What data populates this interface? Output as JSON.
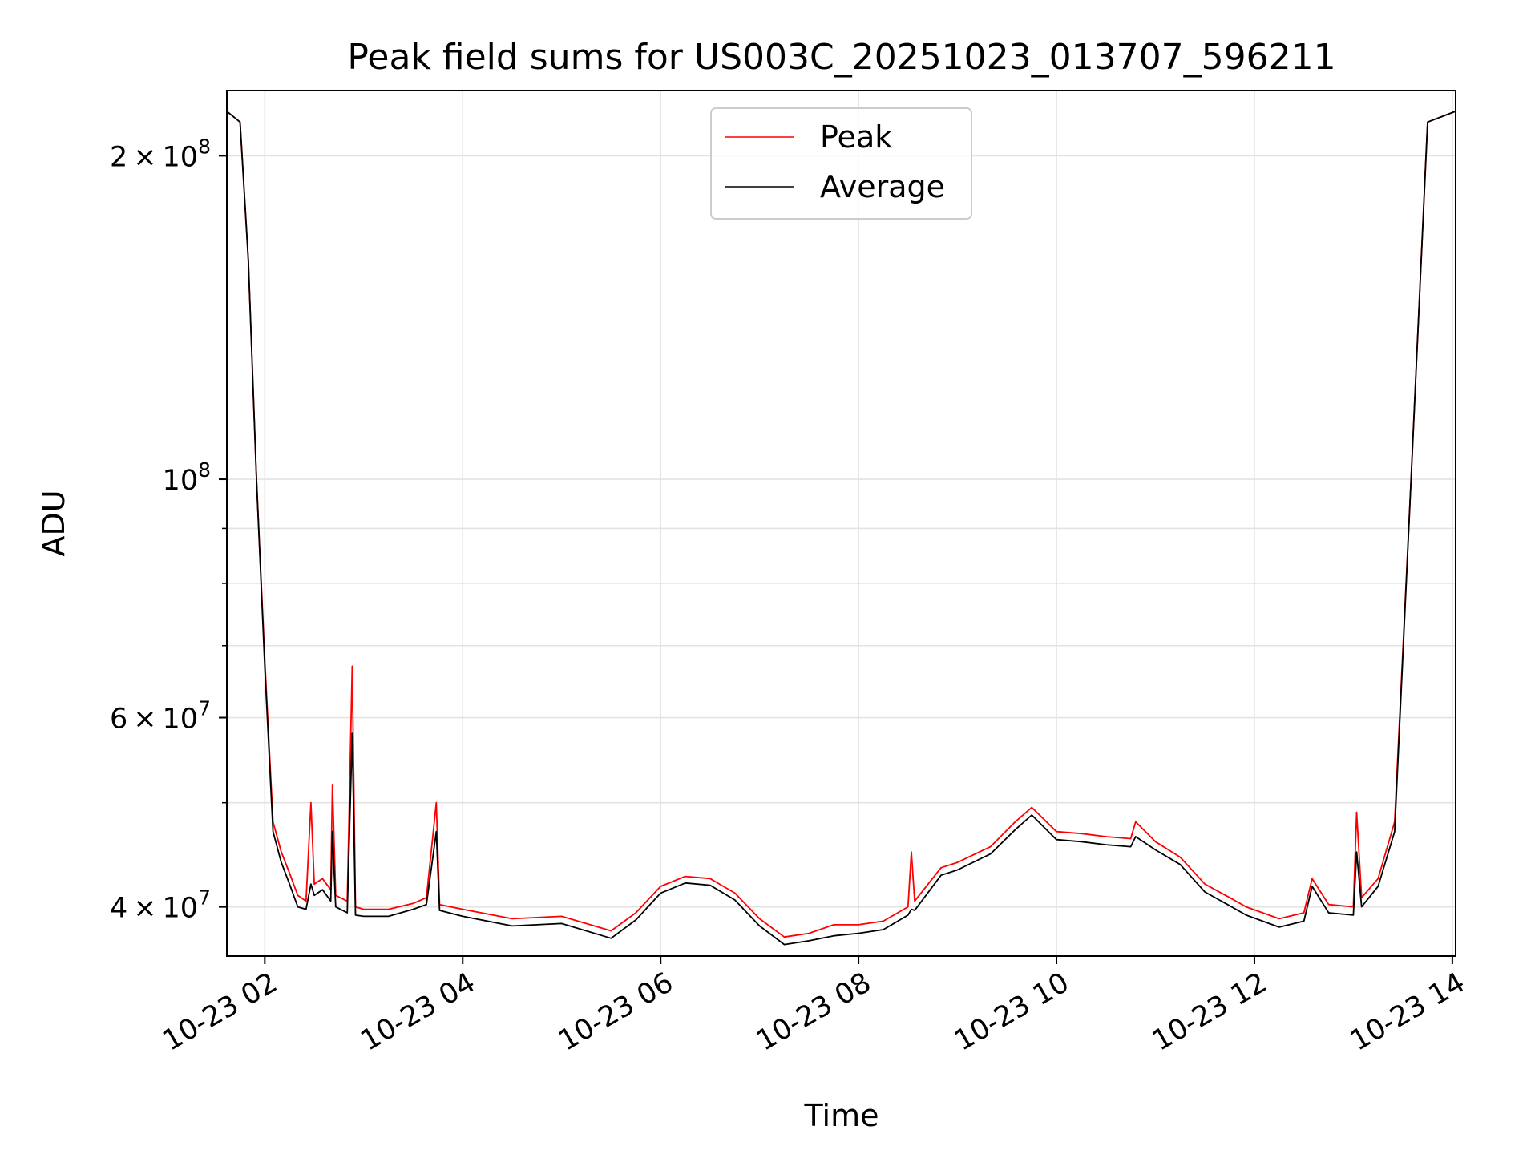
{
  "chart_data": {
    "type": "line",
    "title": "Peak field sums for US003C_20251023_013707_596211",
    "xlabel": "Time",
    "ylabel": "ADU",
    "yscale": "log",
    "grid": true,
    "legend_position": "upper-center",
    "xlim": [
      "2025-10-23 01:37",
      "2025-10-23 14:02"
    ],
    "ylim": [
      36000000,
      230000000
    ],
    "x_ticks": [
      {
        "value": "2025-10-23 02:00",
        "label": "10-23 02"
      },
      {
        "value": "2025-10-23 04:00",
        "label": "10-23 04"
      },
      {
        "value": "2025-10-23 06:00",
        "label": "10-23 06"
      },
      {
        "value": "2025-10-23 08:00",
        "label": "10-23 08"
      },
      {
        "value": "2025-10-23 10:00",
        "label": "10-23 10"
      },
      {
        "value": "2025-10-23 12:00",
        "label": "10-23 12"
      },
      {
        "value": "2025-10-23 14:00",
        "label": "10-23 14"
      }
    ],
    "y_major_ticks": [
      {
        "value": 40000000,
        "mantissa": "4",
        "exponent": "7"
      },
      {
        "value": 60000000,
        "mantissa": "6",
        "exponent": "7"
      },
      {
        "value": 100000000,
        "mantissa": "",
        "exponent": "8"
      },
      {
        "value": 200000000,
        "mantissa": "2",
        "exponent": "8"
      }
    ],
    "y_minor_gridlines": [
      50000000,
      70000000,
      80000000,
      90000000
    ],
    "series": [
      {
        "name": "Peak",
        "color": "#ff0000",
        "points": [
          [
            "2025-10-23 01:37",
            220000000
          ],
          [
            "2025-10-23 01:45",
            215000000
          ],
          [
            "2025-10-23 01:50",
            160000000
          ],
          [
            "2025-10-23 01:55",
            100000000
          ],
          [
            "2025-10-23 02:00",
            68000000
          ],
          [
            "2025-10-23 02:05",
            48000000
          ],
          [
            "2025-10-23 02:10",
            45000000
          ],
          [
            "2025-10-23 02:15",
            43000000
          ],
          [
            "2025-10-23 02:20",
            41000000
          ],
          [
            "2025-10-23 02:25",
            40500000
          ],
          [
            "2025-10-23 02:28",
            50000000
          ],
          [
            "2025-10-23 02:30",
            42000000
          ],
          [
            "2025-10-23 02:35",
            42500000
          ],
          [
            "2025-10-23 02:40",
            41500000
          ],
          [
            "2025-10-23 02:41",
            52000000
          ],
          [
            "2025-10-23 02:43",
            41000000
          ],
          [
            "2025-10-23 02:50",
            40500000
          ],
          [
            "2025-10-23 02:53",
            67000000
          ],
          [
            "2025-10-23 02:55",
            40000000
          ],
          [
            "2025-10-23 03:00",
            39800000
          ],
          [
            "2025-10-23 03:15",
            39800000
          ],
          [
            "2025-10-23 03:30",
            40300000
          ],
          [
            "2025-10-23 03:38",
            40800000
          ],
          [
            "2025-10-23 03:44",
            50000000
          ],
          [
            "2025-10-23 03:46",
            40200000
          ],
          [
            "2025-10-23 04:00",
            39800000
          ],
          [
            "2025-10-23 04:30",
            39000000
          ],
          [
            "2025-10-23 05:00",
            39200000
          ],
          [
            "2025-10-23 05:30",
            38000000
          ],
          [
            "2025-10-23 05:45",
            39500000
          ],
          [
            "2025-10-23 06:00",
            41800000
          ],
          [
            "2025-10-23 06:15",
            42700000
          ],
          [
            "2025-10-23 06:30",
            42500000
          ],
          [
            "2025-10-23 06:45",
            41200000
          ],
          [
            "2025-10-23 07:00",
            39000000
          ],
          [
            "2025-10-23 07:15",
            37500000
          ],
          [
            "2025-10-23 07:30",
            37800000
          ],
          [
            "2025-10-23 07:45",
            38500000
          ],
          [
            "2025-10-23 08:00",
            38500000
          ],
          [
            "2025-10-23 08:15",
            38800000
          ],
          [
            "2025-10-23 08:30",
            40000000
          ],
          [
            "2025-10-23 08:32",
            45000000
          ],
          [
            "2025-10-23 08:34",
            40500000
          ],
          [
            "2025-10-23 08:50",
            43500000
          ],
          [
            "2025-10-23 09:00",
            44000000
          ],
          [
            "2025-10-23 09:20",
            45500000
          ],
          [
            "2025-10-23 09:35",
            48000000
          ],
          [
            "2025-10-23 09:45",
            49500000
          ],
          [
            "2025-10-23 10:00",
            47000000
          ],
          [
            "2025-10-23 10:15",
            46800000
          ],
          [
            "2025-10-23 10:30",
            46500000
          ],
          [
            "2025-10-23 10:45",
            46300000
          ],
          [
            "2025-10-23 10:48",
            48000000
          ],
          [
            "2025-10-23 11:00",
            46000000
          ],
          [
            "2025-10-23 11:15",
            44500000
          ],
          [
            "2025-10-23 11:30",
            42000000
          ],
          [
            "2025-10-23 11:45",
            40800000
          ],
          [
            "2025-10-23 11:55",
            40000000
          ],
          [
            "2025-10-23 12:15",
            39000000
          ],
          [
            "2025-10-23 12:30",
            39500000
          ],
          [
            "2025-10-23 12:35",
            42500000
          ],
          [
            "2025-10-23 12:45",
            40200000
          ],
          [
            "2025-10-23 13:00",
            40000000
          ],
          [
            "2025-10-23 13:02",
            49000000
          ],
          [
            "2025-10-23 13:05",
            40800000
          ],
          [
            "2025-10-23 13:15",
            42500000
          ],
          [
            "2025-10-23 13:25",
            48000000
          ],
          [
            "2025-10-23 13:35",
            100000000
          ],
          [
            "2025-10-23 13:45",
            215000000
          ],
          [
            "2025-10-23 14:02",
            220000000
          ]
        ]
      },
      {
        "name": "Average",
        "color": "#000000",
        "points": [
          [
            "2025-10-23 01:37",
            220000000
          ],
          [
            "2025-10-23 01:45",
            215000000
          ],
          [
            "2025-10-23 01:50",
            160000000
          ],
          [
            "2025-10-23 01:55",
            100000000
          ],
          [
            "2025-10-23 02:00",
            67000000
          ],
          [
            "2025-10-23 02:05",
            47000000
          ],
          [
            "2025-10-23 02:10",
            44000000
          ],
          [
            "2025-10-23 02:15",
            42000000
          ],
          [
            "2025-10-23 02:20",
            40000000
          ],
          [
            "2025-10-23 02:25",
            39800000
          ],
          [
            "2025-10-23 02:28",
            42000000
          ],
          [
            "2025-10-23 02:30",
            41000000
          ],
          [
            "2025-10-23 02:35",
            41500000
          ],
          [
            "2025-10-23 02:40",
            40500000
          ],
          [
            "2025-10-23 02:41",
            47000000
          ],
          [
            "2025-10-23 02:43",
            40000000
          ],
          [
            "2025-10-23 02:50",
            39500000
          ],
          [
            "2025-10-23 02:53",
            58000000
          ],
          [
            "2025-10-23 02:55",
            39300000
          ],
          [
            "2025-10-23 03:00",
            39200000
          ],
          [
            "2025-10-23 03:15",
            39200000
          ],
          [
            "2025-10-23 03:30",
            39800000
          ],
          [
            "2025-10-23 03:38",
            40200000
          ],
          [
            "2025-10-23 03:44",
            47000000
          ],
          [
            "2025-10-23 03:46",
            39700000
          ],
          [
            "2025-10-23 04:00",
            39200000
          ],
          [
            "2025-10-23 04:30",
            38400000
          ],
          [
            "2025-10-23 05:00",
            38600000
          ],
          [
            "2025-10-23 05:30",
            37400000
          ],
          [
            "2025-10-23 05:45",
            38900000
          ],
          [
            "2025-10-23 06:00",
            41200000
          ],
          [
            "2025-10-23 06:15",
            42100000
          ],
          [
            "2025-10-23 06:30",
            41900000
          ],
          [
            "2025-10-23 06:45",
            40600000
          ],
          [
            "2025-10-23 07:00",
            38400000
          ],
          [
            "2025-10-23 07:15",
            36900000
          ],
          [
            "2025-10-23 07:30",
            37200000
          ],
          [
            "2025-10-23 07:45",
            37600000
          ],
          [
            "2025-10-23 08:00",
            37800000
          ],
          [
            "2025-10-23 08:15",
            38100000
          ],
          [
            "2025-10-23 08:30",
            39300000
          ],
          [
            "2025-10-23 08:32",
            39800000
          ],
          [
            "2025-10-23 08:34",
            39700000
          ],
          [
            "2025-10-23 08:50",
            42800000
          ],
          [
            "2025-10-23 09:00",
            43300000
          ],
          [
            "2025-10-23 09:20",
            44800000
          ],
          [
            "2025-10-23 09:35",
            47200000
          ],
          [
            "2025-10-23 09:45",
            48700000
          ],
          [
            "2025-10-23 10:00",
            46200000
          ],
          [
            "2025-10-23 10:15",
            46000000
          ],
          [
            "2025-10-23 10:30",
            45700000
          ],
          [
            "2025-10-23 10:45",
            45500000
          ],
          [
            "2025-10-23 10:48",
            46500000
          ],
          [
            "2025-10-23 11:00",
            45200000
          ],
          [
            "2025-10-23 11:15",
            43800000
          ],
          [
            "2025-10-23 11:30",
            41300000
          ],
          [
            "2025-10-23 11:45",
            40100000
          ],
          [
            "2025-10-23 11:55",
            39300000
          ],
          [
            "2025-10-23 12:15",
            38300000
          ],
          [
            "2025-10-23 12:30",
            38800000
          ],
          [
            "2025-10-23 12:35",
            41800000
          ],
          [
            "2025-10-23 12:45",
            39500000
          ],
          [
            "2025-10-23 13:00",
            39300000
          ],
          [
            "2025-10-23 13:02",
            45000000
          ],
          [
            "2025-10-23 13:05",
            40000000
          ],
          [
            "2025-10-23 13:15",
            41800000
          ],
          [
            "2025-10-23 13:25",
            47000000
          ],
          [
            "2025-10-23 13:35",
            100000000
          ],
          [
            "2025-10-23 13:45",
            215000000
          ],
          [
            "2025-10-23 14:02",
            220000000
          ]
        ]
      }
    ]
  }
}
